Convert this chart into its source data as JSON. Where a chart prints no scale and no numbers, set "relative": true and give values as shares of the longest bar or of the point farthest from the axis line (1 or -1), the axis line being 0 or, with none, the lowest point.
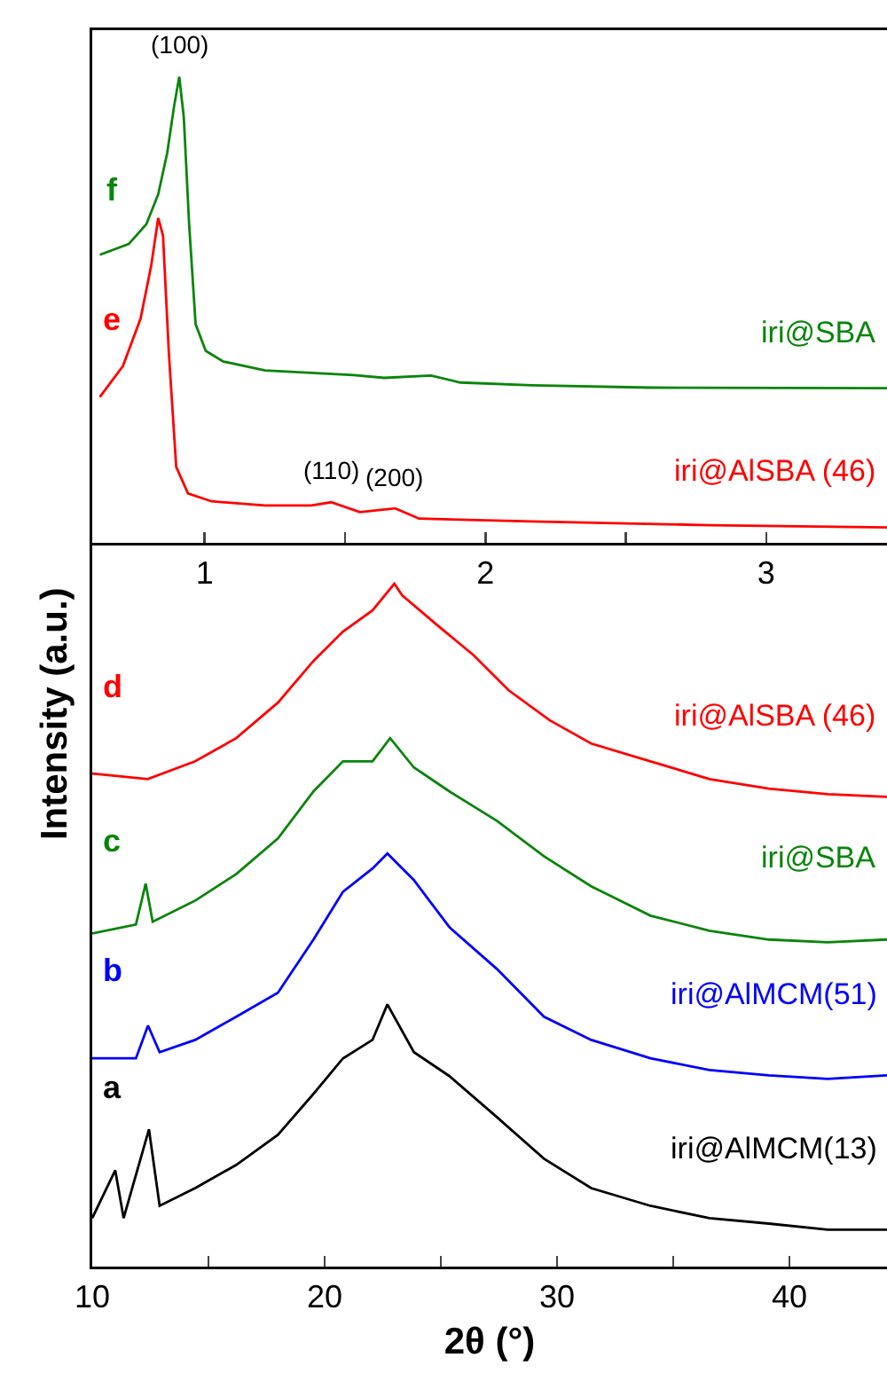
{
  "chart_data": [
    {
      "type": "line",
      "relative": true,
      "xlim": [
        0.6,
        3.43
      ],
      "xticks": [
        1,
        {
          "value": 1.5,
          "label": null
        },
        2,
        {
          "value": 2.5,
          "label": null
        },
        3
      ],
      "tick_labels": "x",
      "series": [
        {
          "name": "iri@SBA",
          "color": "#0a850a",
          "x": [
            0.627,
            0.73,
            0.793,
            0.835,
            0.867,
            0.892,
            0.91,
            0.926,
            0.945,
            0.968,
            1.004,
            1.067,
            1.215,
            1.53,
            1.64,
            1.806,
            1.91,
            2.165,
            2.587,
            3.43
          ],
          "values": [
            0.618,
            0.641,
            0.684,
            0.748,
            0.837,
            0.939,
            1.0,
            0.913,
            0.684,
            0.469,
            0.412,
            0.389,
            0.37,
            0.36,
            0.354,
            0.359,
            0.344,
            0.338,
            0.333,
            0.332
          ]
        },
        {
          "name": "iri@AlSBA (46)",
          "color": "#ff0000",
          "x": [
            0.627,
            0.709,
            0.772,
            0.81,
            0.835,
            0.852,
            0.873,
            0.899,
            0.941,
            1.025,
            1.215,
            1.38,
            1.451,
            1.553,
            1.679,
            1.764,
            2.165,
            2.797,
            3.43
          ],
          "values": [
            0.313,
            0.379,
            0.481,
            0.595,
            0.697,
            0.659,
            0.405,
            0.163,
            0.106,
            0.089,
            0.08,
            0.08,
            0.087,
            0.066,
            0.074,
            0.052,
            0.046,
            0.038,
            0.033
          ]
        }
      ],
      "annotations": [
        "f",
        "e",
        {
          "text": "(100)",
          "x": 0.91,
          "y": 1.0
        },
        {
          "text": "(110)",
          "x": 1.451,
          "y": 0.087
        },
        {
          "text": "(200)",
          "x": 1.679,
          "y": 0.074
        }
      ]
    },
    {
      "type": "line",
      "relative": true,
      "xlim": [
        10,
        44.2
      ],
      "xticks": [
        10,
        {
          "value": 15,
          "label": null
        },
        20,
        {
          "value": 25,
          "label": null
        },
        30,
        {
          "value": 35,
          "label": null
        },
        40
      ],
      "tick_labels": "x",
      "xlabel": "2θ (°)",
      "ylabel": "Intensity (a.u.)",
      "series": [
        {
          "name": "iri@AlSBA (46)",
          "color": "#ff0000",
          "x": [
            10,
            12.39,
            14.43,
            16.2,
            17.99,
            19.52,
            20.79,
            22.06,
            23.0,
            23.34,
            24.86,
            26.39,
            27.92,
            29.69,
            31.47,
            34.02,
            36.56,
            39.11,
            41.65,
            44.2
          ],
          "values": [
            0.722,
            0.714,
            0.74,
            0.774,
            0.826,
            0.887,
            0.93,
            0.961,
            1.0,
            0.983,
            0.939,
            0.896,
            0.844,
            0.8,
            0.766,
            0.74,
            0.714,
            0.7,
            0.692,
            0.688
          ]
        },
        {
          "name": "iri@SBA",
          "color": "#0a850a",
          "x": [
            10,
            11.88,
            12.3,
            12.6,
            14.43,
            16.2,
            17.99,
            19.52,
            20.79,
            22.06,
            22.82,
            23.84,
            25.37,
            27.41,
            29.44,
            31.47,
            34.02,
            36.56,
            39.11,
            41.65,
            44.2
          ],
          "values": [
            0.488,
            0.501,
            0.561,
            0.505,
            0.536,
            0.575,
            0.627,
            0.696,
            0.74,
            0.74,
            0.774,
            0.731,
            0.696,
            0.653,
            0.601,
            0.557,
            0.514,
            0.492,
            0.479,
            0.475,
            0.479
          ]
        },
        {
          "name": "iri@AlMCM(51)",
          "color": "#0000ff",
          "x": [
            10,
            11.88,
            12.4,
            12.9,
            14.43,
            16.2,
            17.99,
            19.52,
            20.79,
            22.06,
            22.7,
            23.84,
            25.37,
            27.41,
            29.44,
            31.47,
            34.02,
            36.56,
            39.11,
            41.65,
            44.2
          ],
          "values": [
            0.305,
            0.305,
            0.353,
            0.314,
            0.332,
            0.366,
            0.401,
            0.479,
            0.549,
            0.583,
            0.605,
            0.566,
            0.497,
            0.436,
            0.366,
            0.332,
            0.305,
            0.288,
            0.28,
            0.275,
            0.28
          ]
        },
        {
          "name": "iri@AlMCM(13)",
          "color": "#000000",
          "x": [
            10,
            10.99,
            11.35,
            12.44,
            12.9,
            14.43,
            16.2,
            17.99,
            19.52,
            20.79,
            22.06,
            22.7,
            23.84,
            25.37,
            27.41,
            29.44,
            31.47,
            34.02,
            36.56,
            39.11,
            41.65,
            44.2
          ],
          "values": [
            0.071,
            0.141,
            0.071,
            0.201,
            0.089,
            0.115,
            0.149,
            0.193,
            0.253,
            0.305,
            0.332,
            0.384,
            0.314,
            0.279,
            0.219,
            0.158,
            0.115,
            0.089,
            0.071,
            0.063,
            0.054,
            0.054
          ]
        }
      ],
      "annotations": [
        "d",
        "c",
        "b",
        "a"
      ]
    }
  ]
}
